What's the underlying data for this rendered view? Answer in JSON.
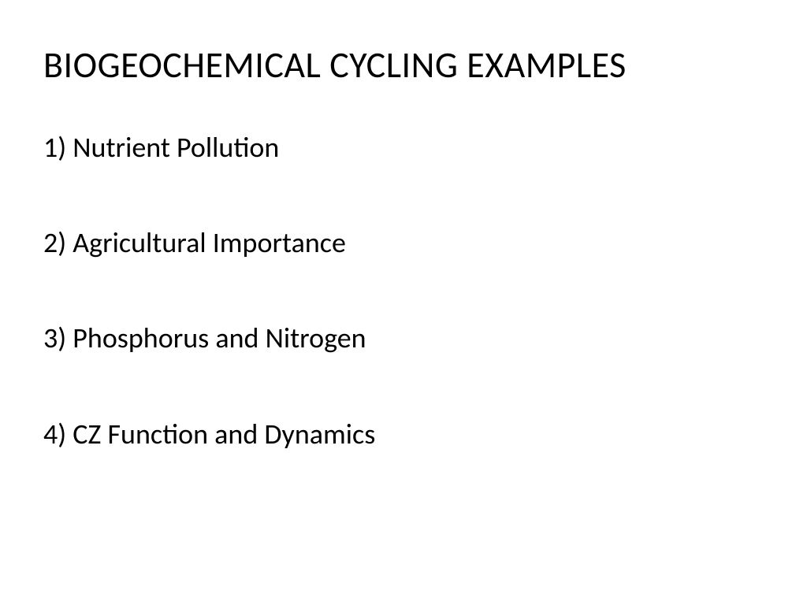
{
  "slide": {
    "title": "BIOGEOCHEMICAL CYCLING EXAMPLES",
    "items": [
      "1) Nutrient Pollution",
      "2) Agricultural Importance",
      "3) Phosphorus and Nitrogen",
      "4) CZ Function and Dynamics"
    ],
    "styling": {
      "background_color": "#ffffff",
      "text_color": "#000000",
      "title_fontsize": 46,
      "item_fontsize": 36,
      "font_family": "Calibri",
      "title_weight": 400,
      "item_weight": 400,
      "item_spacing": 78
    }
  }
}
